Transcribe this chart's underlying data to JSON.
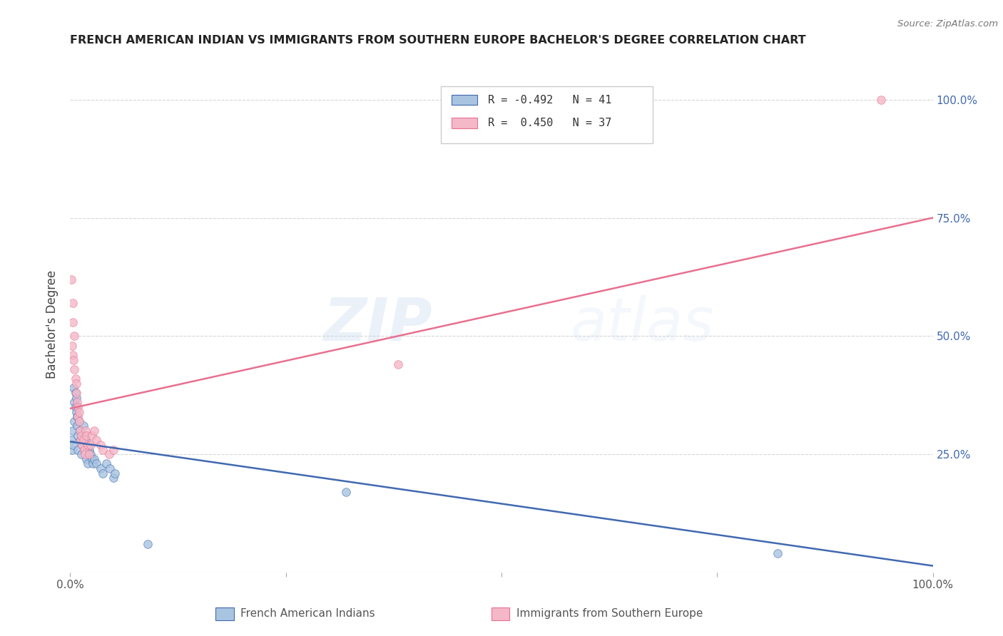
{
  "title": "FRENCH AMERICAN INDIAN VS IMMIGRANTS FROM SOUTHERN EUROPE BACHELOR'S DEGREE CORRELATION CHART",
  "source": "Source: ZipAtlas.com",
  "ylabel": "Bachelor's Degree",
  "legend_label1": "French American Indians",
  "legend_label2": "Immigrants from Southern Europe",
  "r1": -0.492,
  "n1": 41,
  "r2": 0.45,
  "n2": 37,
  "color1": "#a8c4e0",
  "color2": "#f4b8c8",
  "line_color1": "#4169b0",
  "line_color2": "#e87090",
  "watermark_zip": "ZIP",
  "watermark_atlas": "atlas",
  "bg_color": "#ffffff",
  "grid_color": "#cccccc",
  "blue_points": [
    [
      0.001,
      0.28
    ],
    [
      0.002,
      0.26
    ],
    [
      0.003,
      0.27
    ],
    [
      0.003,
      0.3
    ],
    [
      0.004,
      0.39
    ],
    [
      0.005,
      0.36
    ],
    [
      0.005,
      0.32
    ],
    [
      0.006,
      0.35
    ],
    [
      0.006,
      0.38
    ],
    [
      0.007,
      0.37
    ],
    [
      0.007,
      0.34
    ],
    [
      0.008,
      0.33
    ],
    [
      0.008,
      0.31
    ],
    [
      0.009,
      0.29
    ],
    [
      0.009,
      0.26
    ],
    [
      0.01,
      0.32
    ],
    [
      0.011,
      0.3
    ],
    [
      0.012,
      0.28
    ],
    [
      0.013,
      0.25
    ],
    [
      0.014,
      0.27
    ],
    [
      0.015,
      0.31
    ],
    [
      0.016,
      0.29
    ],
    [
      0.017,
      0.26
    ],
    [
      0.018,
      0.28
    ],
    [
      0.019,
      0.24
    ],
    [
      0.02,
      0.23
    ],
    [
      0.022,
      0.26
    ],
    [
      0.024,
      0.25
    ],
    [
      0.025,
      0.24
    ],
    [
      0.026,
      0.23
    ],
    [
      0.028,
      0.24
    ],
    [
      0.03,
      0.23
    ],
    [
      0.035,
      0.22
    ],
    [
      0.038,
      0.21
    ],
    [
      0.042,
      0.23
    ],
    [
      0.046,
      0.22
    ],
    [
      0.05,
      0.2
    ],
    [
      0.052,
      0.21
    ],
    [
      0.32,
      0.17
    ],
    [
      0.09,
      0.06
    ],
    [
      0.82,
      0.04
    ]
  ],
  "pink_points": [
    [
      0.001,
      0.62
    ],
    [
      0.002,
      0.48
    ],
    [
      0.003,
      0.57
    ],
    [
      0.003,
      0.53
    ],
    [
      0.003,
      0.46
    ],
    [
      0.004,
      0.45
    ],
    [
      0.005,
      0.5
    ],
    [
      0.005,
      0.43
    ],
    [
      0.006,
      0.41
    ],
    [
      0.007,
      0.4
    ],
    [
      0.007,
      0.38
    ],
    [
      0.008,
      0.36
    ],
    [
      0.009,
      0.35
    ],
    [
      0.009,
      0.33
    ],
    [
      0.01,
      0.32
    ],
    [
      0.01,
      0.34
    ],
    [
      0.011,
      0.3
    ],
    [
      0.012,
      0.28
    ],
    [
      0.013,
      0.29
    ],
    [
      0.014,
      0.27
    ],
    [
      0.015,
      0.28
    ],
    [
      0.016,
      0.26
    ],
    [
      0.017,
      0.25
    ],
    [
      0.018,
      0.3
    ],
    [
      0.019,
      0.29
    ],
    [
      0.02,
      0.27
    ],
    [
      0.022,
      0.25
    ],
    [
      0.024,
      0.27
    ],
    [
      0.025,
      0.29
    ],
    [
      0.028,
      0.3
    ],
    [
      0.03,
      0.28
    ],
    [
      0.035,
      0.27
    ],
    [
      0.038,
      0.26
    ],
    [
      0.045,
      0.25
    ],
    [
      0.05,
      0.26
    ],
    [
      0.38,
      0.44
    ],
    [
      0.94,
      1.0
    ]
  ],
  "xlim": [
    0.0,
    1.0
  ],
  "ylim": [
    0.0,
    1.05
  ]
}
